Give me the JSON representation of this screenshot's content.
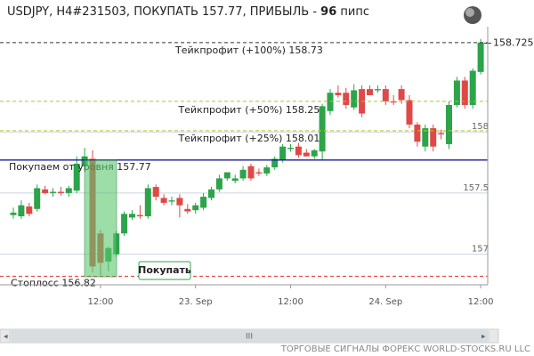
{
  "header": {
    "text": "USDJPY, H4#231503, ПОКУПАТЬ 157.77, ПРИБЫЛЬ -",
    "pips": 96,
    "unit": "пипс"
  },
  "button": "Покупать",
  "footer": "ТОРГОВЫЕ СИГНАЛЫ ФОРЕКС WORLD-STOCKS.RU LLC",
  "chart_data": {
    "type": "candlestick",
    "up_color": "#2ca44a",
    "down_color": "#e04848",
    "categories": [
      null,
      null,
      null,
      null,
      null,
      null,
      null,
      null,
      null,
      null,
      null,
      "12:00",
      null,
      null,
      null,
      null,
      null,
      null,
      null,
      null,
      null,
      null,
      null,
      "23. Sep",
      null,
      null,
      null,
      null,
      null,
      null,
      null,
      null,
      null,
      null,
      null,
      "12:00",
      null,
      null,
      null,
      null,
      null,
      null,
      null,
      null,
      null,
      null,
      null,
      "24. Sep",
      null,
      null,
      null,
      null,
      null,
      null,
      null,
      null,
      null,
      null,
      null,
      "12:00"
    ],
    "series": [
      {
        "open": [
          157.32,
          157.31,
          157.39,
          157.37,
          157.53,
          157.5,
          157.51,
          157.5,
          157.52,
          157.72,
          157.78,
          157.17,
          156.94,
          157.0,
          157.17,
          157.3,
          157.32,
          157.31,
          157.55,
          157.46,
          157.43,
          157.46,
          157.37,
          157.36,
          157.38,
          157.46,
          157.53,
          157.62,
          157.6,
          157.62,
          157.72,
          157.67,
          157.66,
          157.71,
          157.77,
          157.86,
          157.88,
          157.83,
          157.8,
          157.84,
          158.17,
          158.32,
          158.32,
          158.2,
          158.35,
          158.35,
          158.34,
          158.35,
          158.25,
          158.35,
          158.26,
          158.06,
          157.88,
          158.03,
          157.99,
          157.9,
          158.22,
          158.42,
          158.22,
          158.49
        ],
        "high": [
          157.38,
          157.44,
          157.42,
          157.57,
          157.56,
          157.54,
          157.55,
          157.56,
          157.8,
          157.87,
          157.85,
          157.2,
          157.06,
          157.19,
          157.35,
          157.36,
          157.4,
          157.57,
          157.57,
          157.49,
          157.47,
          157.49,
          157.41,
          157.42,
          157.5,
          157.55,
          157.65,
          157.67,
          157.65,
          157.72,
          157.74,
          157.7,
          157.73,
          157.8,
          157.9,
          157.9,
          157.91,
          157.86,
          157.86,
          158.23,
          158.35,
          158.38,
          158.36,
          158.39,
          158.38,
          158.38,
          158.38,
          158.38,
          158.3,
          158.38,
          158.3,
          158.08,
          158.06,
          158.06,
          158.02,
          158.25,
          158.45,
          158.45,
          158.52,
          158.76
        ],
        "low": [
          157.29,
          157.29,
          157.31,
          157.35,
          157.49,
          157.47,
          157.48,
          157.47,
          157.5,
          157.7,
          156.85,
          156.83,
          156.86,
          156.98,
          157.15,
          157.28,
          157.29,
          157.29,
          157.44,
          157.4,
          157.4,
          157.3,
          157.33,
          157.33,
          157.36,
          157.44,
          157.51,
          157.6,
          157.58,
          157.6,
          157.6,
          157.64,
          157.64,
          157.69,
          157.75,
          157.84,
          157.79,
          157.8,
          157.78,
          157.77,
          158.14,
          158.28,
          158.19,
          158.18,
          158.12,
          158.3,
          158.32,
          158.22,
          158.22,
          158.23,
          158.03,
          157.88,
          157.84,
          157.84,
          157.94,
          157.86,
          158.2,
          158.19,
          158.19,
          158.47
        ],
        "close": [
          157.34,
          157.4,
          157.33,
          157.54,
          157.5,
          157.51,
          157.5,
          157.54,
          157.74,
          157.8,
          156.9,
          156.93,
          157.05,
          157.17,
          157.33,
          157.33,
          157.31,
          157.54,
          157.47,
          157.42,
          157.44,
          157.4,
          157.35,
          157.4,
          157.47,
          157.53,
          157.62,
          157.67,
          157.62,
          157.69,
          157.62,
          157.66,
          157.71,
          157.78,
          157.88,
          157.87,
          157.81,
          157.8,
          157.85,
          158.21,
          158.32,
          158.3,
          158.22,
          158.34,
          158.15,
          158.3,
          158.35,
          158.25,
          158.24,
          158.26,
          158.06,
          157.92,
          158.03,
          157.88,
          157.98,
          158.22,
          158.42,
          158.22,
          158.5,
          158.73
        ]
      }
    ],
    "ylim": [
      156.75,
      158.86
    ],
    "yticks": [
      157,
      157.5,
      158
    ],
    "levels": [
      {
        "label": "Тейкпрофит (+100%) 158.73",
        "value": 158.73,
        "color": "#333333"
      },
      {
        "label": "Тейкпрофит (+50%) 158.25",
        "value": 158.25,
        "color": "#9acd32"
      },
      {
        "label": "Тейкпрофит (+25%) 158.01",
        "value": 158.01,
        "color": "#b8c832"
      },
      {
        "label": "Покупаем от уровня 157.77",
        "value": 157.77,
        "color": "#1a1aa0"
      },
      {
        "label": "Стоплосс 156.82",
        "value": 156.82,
        "color": "#e03030"
      }
    ],
    "current_price": 158.725
  }
}
